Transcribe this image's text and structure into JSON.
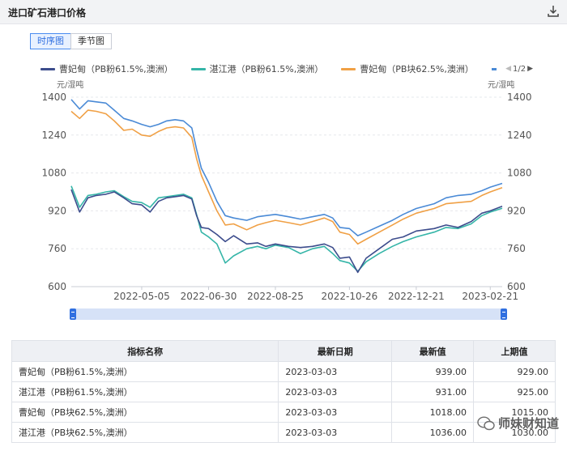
{
  "panel": {
    "title": "进口矿石港口价格"
  },
  "tabs": [
    {
      "label": "时序图",
      "active": true
    },
    {
      "label": "季节图",
      "active": false
    }
  ],
  "legend_pager": {
    "text": "1/2"
  },
  "units": {
    "left": "元/湿吨",
    "right": "元/湿吨"
  },
  "chart_data": {
    "type": "line",
    "ylim": [
      600,
      1400
    ],
    "y_ticks": [
      600,
      760,
      920,
      1080,
      1240,
      1400
    ],
    "x_tick_labels": [
      "2022-05-05",
      "2022-06-30",
      "2022-08-25",
      "2022-10-26",
      "2022-12-21",
      "2023-02-21"
    ],
    "x_tick_dates": [
      "2022-05-05",
      "2022-06-30",
      "2022-08-25",
      "2022-10-26",
      "2022-12-21",
      "2023-02-21"
    ],
    "x_range": [
      "2022-03-07",
      "2023-03-03"
    ],
    "grid": "horizontal",
    "legend_position": "top",
    "series": [
      {
        "name": "曹妃甸（PB粉61.5%,澳洲）",
        "color": "#3c4c8c",
        "points": [
          [
            "2022-03-07",
            1010
          ],
          [
            "2022-03-14",
            915
          ],
          [
            "2022-03-21",
            975
          ],
          [
            "2022-03-28",
            985
          ],
          [
            "2022-04-05",
            990
          ],
          [
            "2022-04-12",
            1000
          ],
          [
            "2022-04-20",
            975
          ],
          [
            "2022-04-27",
            950
          ],
          [
            "2022-05-05",
            945
          ],
          [
            "2022-05-12",
            915
          ],
          [
            "2022-05-19",
            960
          ],
          [
            "2022-05-26",
            975
          ],
          [
            "2022-06-02",
            980
          ],
          [
            "2022-06-09",
            985
          ],
          [
            "2022-06-16",
            970
          ],
          [
            "2022-06-20",
            900
          ],
          [
            "2022-06-24",
            850
          ],
          [
            "2022-06-30",
            845
          ],
          [
            "2022-07-07",
            820
          ],
          [
            "2022-07-14",
            790
          ],
          [
            "2022-07-21",
            815
          ],
          [
            "2022-08-01",
            780
          ],
          [
            "2022-08-10",
            785
          ],
          [
            "2022-08-17",
            770
          ],
          [
            "2022-08-25",
            780
          ],
          [
            "2022-09-05",
            770
          ],
          [
            "2022-09-15",
            765
          ],
          [
            "2022-09-25",
            770
          ],
          [
            "2022-10-05",
            780
          ],
          [
            "2022-10-12",
            765
          ],
          [
            "2022-10-18",
            720
          ],
          [
            "2022-10-26",
            725
          ],
          [
            "2022-11-02",
            660
          ],
          [
            "2022-11-09",
            720
          ],
          [
            "2022-11-20",
            760
          ],
          [
            "2022-12-01",
            800
          ],
          [
            "2022-12-10",
            810
          ],
          [
            "2022-12-21",
            835
          ],
          [
            "2023-01-05",
            845
          ],
          [
            "2023-01-15",
            860
          ],
          [
            "2023-01-25",
            850
          ],
          [
            "2023-02-05",
            875
          ],
          [
            "2023-02-14",
            910
          ],
          [
            "2023-02-21",
            920
          ],
          [
            "2023-03-03",
            939
          ]
        ]
      },
      {
        "name": "湛江港（PB粉61.5%,澳洲）",
        "color": "#35b5a8",
        "points": [
          [
            "2022-03-07",
            1025
          ],
          [
            "2022-03-14",
            935
          ],
          [
            "2022-03-21",
            985
          ],
          [
            "2022-03-28",
            990
          ],
          [
            "2022-04-05",
            1000
          ],
          [
            "2022-04-12",
            1005
          ],
          [
            "2022-04-20",
            980
          ],
          [
            "2022-04-27",
            960
          ],
          [
            "2022-05-05",
            955
          ],
          [
            "2022-05-12",
            935
          ],
          [
            "2022-05-19",
            975
          ],
          [
            "2022-05-26",
            980
          ],
          [
            "2022-06-02",
            985
          ],
          [
            "2022-06-09",
            990
          ],
          [
            "2022-06-16",
            975
          ],
          [
            "2022-06-20",
            905
          ],
          [
            "2022-06-24",
            830
          ],
          [
            "2022-06-30",
            810
          ],
          [
            "2022-07-07",
            780
          ],
          [
            "2022-07-14",
            700
          ],
          [
            "2022-07-21",
            730
          ],
          [
            "2022-08-01",
            760
          ],
          [
            "2022-08-10",
            770
          ],
          [
            "2022-08-17",
            760
          ],
          [
            "2022-08-25",
            775
          ],
          [
            "2022-09-05",
            765
          ],
          [
            "2022-09-15",
            740
          ],
          [
            "2022-09-25",
            760
          ],
          [
            "2022-10-05",
            770
          ],
          [
            "2022-10-12",
            740
          ],
          [
            "2022-10-18",
            710
          ],
          [
            "2022-10-26",
            700
          ],
          [
            "2022-11-02",
            665
          ],
          [
            "2022-11-09",
            705
          ],
          [
            "2022-11-20",
            740
          ],
          [
            "2022-12-01",
            770
          ],
          [
            "2022-12-10",
            790
          ],
          [
            "2022-12-21",
            810
          ],
          [
            "2023-01-05",
            830
          ],
          [
            "2023-01-15",
            850
          ],
          [
            "2023-01-25",
            845
          ],
          [
            "2023-02-05",
            865
          ],
          [
            "2023-02-14",
            900
          ],
          [
            "2023-02-21",
            915
          ],
          [
            "2023-03-03",
            931
          ]
        ]
      },
      {
        "name": "曹妃甸（PB块62.5%,澳洲）",
        "color": "#f0a045",
        "points": [
          [
            "2022-03-07",
            1340
          ],
          [
            "2022-03-14",
            1310
          ],
          [
            "2022-03-21",
            1345
          ],
          [
            "2022-03-28",
            1340
          ],
          [
            "2022-04-05",
            1330
          ],
          [
            "2022-04-12",
            1300
          ],
          [
            "2022-04-20",
            1260
          ],
          [
            "2022-04-27",
            1265
          ],
          [
            "2022-05-05",
            1240
          ],
          [
            "2022-05-12",
            1235
          ],
          [
            "2022-05-19",
            1255
          ],
          [
            "2022-05-26",
            1270
          ],
          [
            "2022-06-02",
            1275
          ],
          [
            "2022-06-09",
            1270
          ],
          [
            "2022-06-16",
            1230
          ],
          [
            "2022-06-20",
            1140
          ],
          [
            "2022-06-24",
            1070
          ],
          [
            "2022-06-30",
            1000
          ],
          [
            "2022-07-07",
            920
          ],
          [
            "2022-07-14",
            860
          ],
          [
            "2022-07-21",
            865
          ],
          [
            "2022-08-01",
            840
          ],
          [
            "2022-08-10",
            860
          ],
          [
            "2022-08-17",
            870
          ],
          [
            "2022-08-25",
            880
          ],
          [
            "2022-09-05",
            870
          ],
          [
            "2022-09-15",
            860
          ],
          [
            "2022-09-25",
            875
          ],
          [
            "2022-10-05",
            890
          ],
          [
            "2022-10-12",
            875
          ],
          [
            "2022-10-18",
            830
          ],
          [
            "2022-10-26",
            820
          ],
          [
            "2022-11-02",
            780
          ],
          [
            "2022-11-09",
            800
          ],
          [
            "2022-11-20",
            830
          ],
          [
            "2022-12-01",
            860
          ],
          [
            "2022-12-10",
            885
          ],
          [
            "2022-12-21",
            910
          ],
          [
            "2023-01-05",
            930
          ],
          [
            "2023-01-15",
            950
          ],
          [
            "2023-01-25",
            955
          ],
          [
            "2023-02-05",
            960
          ],
          [
            "2023-02-14",
            985
          ],
          [
            "2023-02-21",
            1000
          ],
          [
            "2023-03-03",
            1018
          ]
        ]
      },
      {
        "name": "湛江港（PB块62.5%,澳洲）",
        "color": "#4a8ad6",
        "points": [
          [
            "2022-03-07",
            1390
          ],
          [
            "2022-03-14",
            1350
          ],
          [
            "2022-03-21",
            1385
          ],
          [
            "2022-03-28",
            1380
          ],
          [
            "2022-04-05",
            1375
          ],
          [
            "2022-04-12",
            1345
          ],
          [
            "2022-04-20",
            1310
          ],
          [
            "2022-04-27",
            1300
          ],
          [
            "2022-05-05",
            1285
          ],
          [
            "2022-05-12",
            1275
          ],
          [
            "2022-05-19",
            1285
          ],
          [
            "2022-05-26",
            1300
          ],
          [
            "2022-06-02",
            1305
          ],
          [
            "2022-06-09",
            1300
          ],
          [
            "2022-06-16",
            1270
          ],
          [
            "2022-06-20",
            1180
          ],
          [
            "2022-06-24",
            1100
          ],
          [
            "2022-06-30",
            1040
          ],
          [
            "2022-07-07",
            960
          ],
          [
            "2022-07-14",
            900
          ],
          [
            "2022-07-21",
            890
          ],
          [
            "2022-08-01",
            880
          ],
          [
            "2022-08-10",
            895
          ],
          [
            "2022-08-17",
            900
          ],
          [
            "2022-08-25",
            905
          ],
          [
            "2022-09-05",
            895
          ],
          [
            "2022-09-15",
            885
          ],
          [
            "2022-09-25",
            895
          ],
          [
            "2022-10-05",
            905
          ],
          [
            "2022-10-12",
            890
          ],
          [
            "2022-10-18",
            850
          ],
          [
            "2022-10-26",
            845
          ],
          [
            "2022-11-02",
            815
          ],
          [
            "2022-11-09",
            830
          ],
          [
            "2022-11-20",
            855
          ],
          [
            "2022-12-01",
            880
          ],
          [
            "2022-12-10",
            905
          ],
          [
            "2022-12-21",
            930
          ],
          [
            "2023-01-05",
            950
          ],
          [
            "2023-01-15",
            975
          ],
          [
            "2023-01-25",
            985
          ],
          [
            "2023-02-05",
            990
          ],
          [
            "2023-02-14",
            1005
          ],
          [
            "2023-02-21",
            1020
          ],
          [
            "2023-03-03",
            1036
          ]
        ]
      }
    ]
  },
  "table": {
    "headers": [
      "指标名称",
      "最新日期",
      "最新值",
      "上期值"
    ],
    "rows": [
      {
        "name": "曹妃甸（PB粉61.5%,澳洲）",
        "date": "2023-03-03",
        "latest": "939.00",
        "prev": "929.00"
      },
      {
        "name": "湛江港（PB粉61.5%,澳洲）",
        "date": "2023-03-03",
        "latest": "931.00",
        "prev": "925.00"
      },
      {
        "name": "曹妃甸（PB块62.5%,澳洲）",
        "date": "2023-03-03",
        "latest": "1018.00",
        "prev": "1015.00"
      },
      {
        "name": "湛江港（PB块62.5%,澳洲）",
        "date": "2023-03-03",
        "latest": "1036.00",
        "prev": "1030.00"
      }
    ]
  },
  "watermark": {
    "text": "师妹财知道"
  }
}
